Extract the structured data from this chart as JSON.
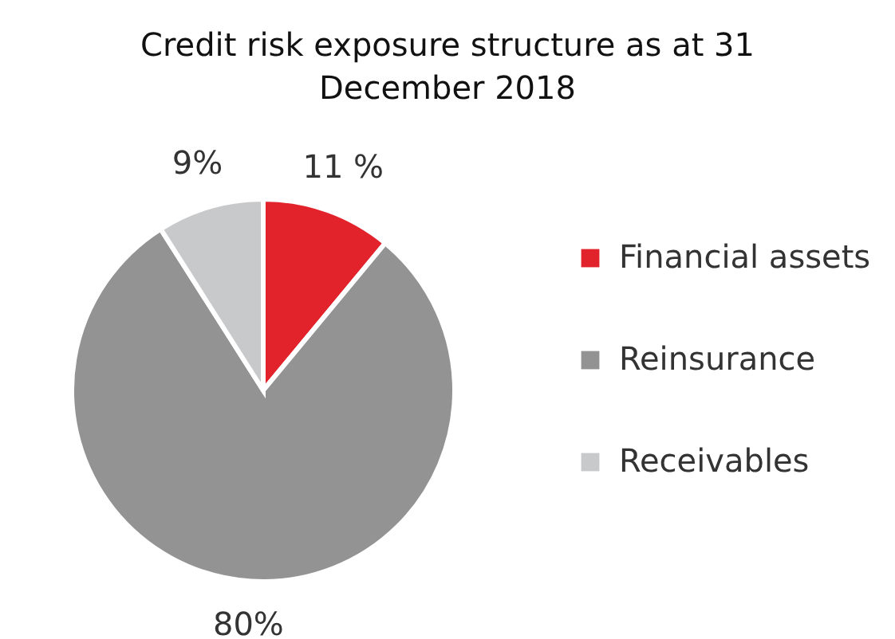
{
  "chart_data": {
    "type": "pie",
    "title": "Credit risk exposure structure as at 31 December 2018",
    "categories": [
      "Financial assets",
      "Reinsurance",
      "Receivables"
    ],
    "values": [
      11,
      80,
      9
    ],
    "colors": [
      "#e3232b",
      "#939393",
      "#c8c9cb"
    ],
    "value_labels": [
      "11 %",
      "80%",
      "9%"
    ],
    "legend": "right"
  }
}
